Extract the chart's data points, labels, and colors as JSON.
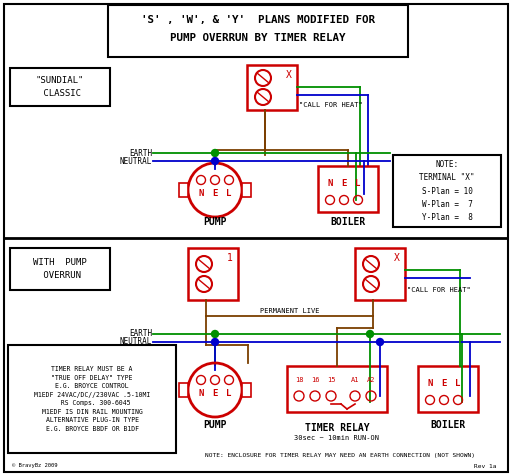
{
  "title_line1": "'S' , 'W', & 'Y'  PLANS MODIFIED FOR",
  "title_line2": "PUMP OVERRUN BY TIMER RELAY",
  "bg_color": "#ffffff",
  "red_color": "#cc0000",
  "green_color": "#009000",
  "blue_color": "#0000cc",
  "brown_color": "#7B3F00",
  "label_pump": "PUMP",
  "label_boiler": "BOILER",
  "label_timer": "TIMER RELAY",
  "label_timer_sub": "30sec ~ 10min RUN-ON",
  "label_call_heat": "\"CALL FOR HEAT\"",
  "label_perm_live": "PERMANENT LIVE",
  "label_earth": "EARTH",
  "label_neutral": "NEUTRAL",
  "note_text": "NOTE:\nTERMINAL \"X\"\nS-Plan = 10\nW-Plan =  7\nY-Plan =  8",
  "timer_note": "NOTE: ENCLOSURE FOR TIMER RELAY MAY NEED AN EARTH CONNECTION (NOT SHOWN)",
  "timer_relay_text": "TIMER RELAY MUST BE A\n\"TRUE OFF DELAY\" TYPE\nE.G. BROYCE CONTROL\nM1EDF 24VAC/DC//230VAC .5-10MI\n  RS Comps. 300-6045\nM1EDF IS DIN RAIL MOUNTING\nALTERNATIVE PLUG-IN TYPE\nE.G. BROYCE B8DF OR B1DF",
  "rev_text": "Rev 1a",
  "copyright_text": "© BravyBz 2009",
  "sundial_text": "\"SUNDIAL\"\n CLASSIC",
  "with_pump_text": "WITH  PUMP\n OVERRUN"
}
